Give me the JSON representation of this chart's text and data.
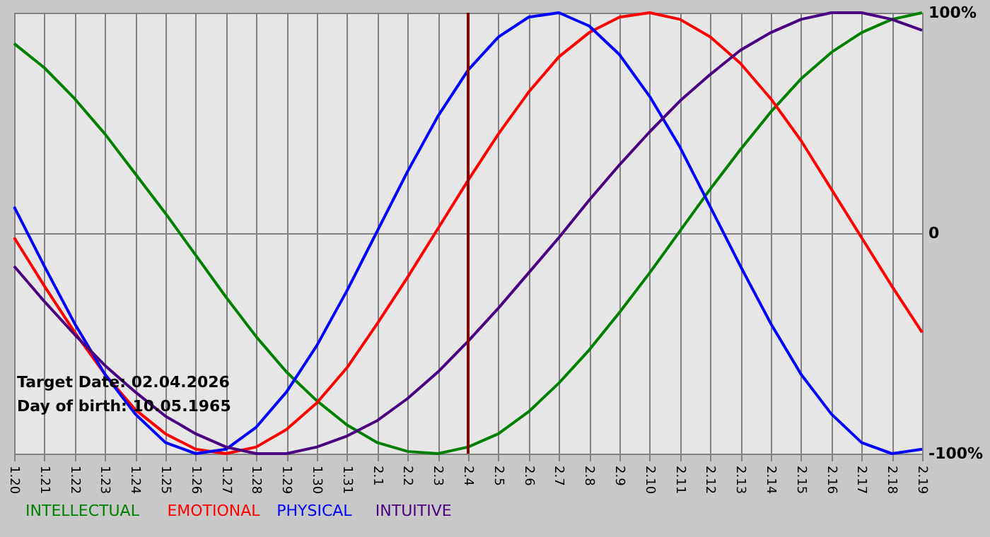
{
  "chart_data": {
    "type": "line",
    "categories": [
      "1.20",
      "1.21",
      "1.22",
      "1.23",
      "1.24",
      "1.25",
      "1.26",
      "1.27",
      "1.28",
      "1.29",
      "1.30",
      "1.31",
      "2.1",
      "2.2",
      "2.3",
      "2.4",
      "2.5",
      "2.6",
      "2.7",
      "2.8",
      "2.9",
      "2.10",
      "2.11",
      "2.12",
      "2.13",
      "2.14",
      "2.15",
      "2.16",
      "2.17",
      "2.18",
      "2.19"
    ],
    "series": [
      {
        "name": "INTELLECTUAL",
        "color": "#008000",
        "values": [
          86,
          75,
          61,
          45,
          27,
          9,
          -10,
          -29,
          -47,
          -63,
          -76,
          -87,
          -95,
          -99,
          -100,
          -97,
          -91,
          -81,
          -68,
          -53,
          -36,
          -18,
          1,
          20,
          38,
          55,
          70,
          82,
          91,
          97,
          100
        ]
      },
      {
        "name": "EMOTIONAL",
        "color": "#ff0000",
        "values": [
          -2,
          -24,
          -45,
          -64,
          -80,
          -91,
          -98,
          -100,
          -97,
          -89,
          -77,
          -61,
          -41,
          -20,
          2,
          24,
          45,
          64,
          80,
          91,
          98,
          100,
          97,
          89,
          77,
          61,
          42,
          20,
          -2,
          -24,
          -45
        ]
      },
      {
        "name": "PHYSICAL",
        "color": "#0000ff",
        "values": [
          12,
          -15,
          -41,
          -64,
          -82,
          -95,
          -100,
          -98,
          -88,
          -72,
          -51,
          -26,
          1,
          28,
          53,
          74,
          89,
          98,
          100,
          94,
          81,
          62,
          39,
          12,
          -15,
          -41,
          -64,
          -82,
          -95,
          -100,
          -98
        ]
      },
      {
        "name": "INTUITIVE",
        "color": "#4b0082",
        "values": [
          -15,
          -31,
          -46,
          -60,
          -72,
          -83,
          -91,
          -97,
          -100,
          -100,
          -97,
          -92,
          -85,
          -75,
          -63,
          -49,
          -34,
          -18,
          -2,
          15,
          31,
          46,
          60,
          72,
          83,
          91,
          97,
          100,
          100,
          97,
          92
        ]
      }
    ],
    "ylim": [
      -100,
      100
    ],
    "yticks": [
      {
        "value": 100,
        "label": "100%"
      },
      0,
      {
        "value": -100,
        "label": "-100%"
      }
    ],
    "grid": true,
    "legend": "bottom",
    "marker": "none",
    "line_style": "solid",
    "ref_lines": [
      {
        "axis": "x",
        "value": "2.4",
        "color": "#800000"
      }
    ],
    "annotations": [
      "Target Date: 02.04.2026",
      "Day of birth: 10.05.1965"
    ]
  }
}
